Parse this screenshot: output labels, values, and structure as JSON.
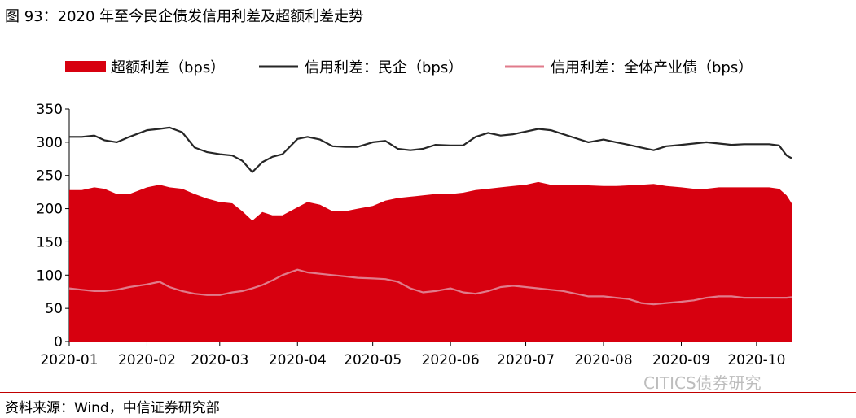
{
  "figure": {
    "title": "图 93：2020 年至今民企债发信用利差及超额利差走势",
    "source": "资料来源：Wind，中信证券研究部",
    "watermark": "CITICS债券研究"
  },
  "chart_data": {
    "type": "area",
    "x_tick_labels": [
      "2020-01",
      "2020-02",
      "2020-03",
      "2020-04",
      "2020-05",
      "2020-06",
      "2020-07",
      "2020-08",
      "2020-09",
      "2020-10"
    ],
    "y_tick_labels": [
      "0",
      "50",
      "100",
      "150",
      "200",
      "250",
      "300",
      "350"
    ],
    "ylim": [
      0,
      350
    ],
    "legend_position": "top",
    "x": [
      "2020-01-01",
      "2020-01-06",
      "2020-01-11",
      "2020-01-15",
      "2020-01-20",
      "2020-01-25",
      "2020-02-01",
      "2020-02-06",
      "2020-02-10",
      "2020-02-15",
      "2020-02-20",
      "2020-02-25",
      "2020-03-01",
      "2020-03-06",
      "2020-03-10",
      "2020-03-14",
      "2020-03-18",
      "2020-03-22",
      "2020-03-26",
      "2020-04-01",
      "2020-04-05",
      "2020-04-10",
      "2020-04-15",
      "2020-04-20",
      "2020-04-25",
      "2020-05-01",
      "2020-05-06",
      "2020-05-11",
      "2020-05-16",
      "2020-05-21",
      "2020-05-26",
      "2020-06-01",
      "2020-06-06",
      "2020-06-11",
      "2020-06-16",
      "2020-06-21",
      "2020-06-26",
      "2020-07-01",
      "2020-07-06",
      "2020-07-11",
      "2020-07-16",
      "2020-07-21",
      "2020-07-26",
      "2020-08-01",
      "2020-08-06",
      "2020-08-11",
      "2020-08-16",
      "2020-08-21",
      "2020-08-26",
      "2020-09-01",
      "2020-09-06",
      "2020-09-11",
      "2020-09-16",
      "2020-09-21",
      "2020-09-26",
      "2020-10-01",
      "2020-10-06",
      "2020-10-10",
      "2020-10-13",
      "2020-10-15"
    ],
    "series": [
      {
        "name": "超额利差（bps）",
        "style": "area",
        "color": "#d7000f",
        "values": [
          228,
          228,
          232,
          230,
          222,
          222,
          232,
          236,
          232,
          230,
          222,
          215,
          210,
          208,
          196,
          182,
          195,
          190,
          190,
          202,
          210,
          206,
          196,
          196,
          200,
          204,
          212,
          216,
          218,
          220,
          222,
          222,
          224,
          228,
          230,
          232,
          234,
          236,
          240,
          236,
          236,
          235,
          235,
          234,
          234,
          235,
          236,
          237,
          234,
          232,
          230,
          230,
          232,
          232,
          232,
          232,
          232,
          230,
          220,
          208
        ]
      },
      {
        "name": "信用利差：民企（bps）",
        "style": "line",
        "color": "#262626",
        "values": [
          308,
          308,
          310,
          303,
          300,
          308,
          318,
          320,
          322,
          315,
          292,
          285,
          282,
          280,
          272,
          255,
          270,
          278,
          282,
          305,
          308,
          304,
          294,
          293,
          293,
          300,
          302,
          290,
          288,
          290,
          296,
          295,
          295,
          308,
          314,
          310,
          312,
          316,
          320,
          318,
          312,
          306,
          300,
          304,
          300,
          296,
          292,
          288,
          294,
          296,
          298,
          300,
          298,
          296,
          297,
          297,
          297,
          295,
          280,
          276
        ]
      },
      {
        "name": "信用利差：全体产业债（bps）",
        "style": "line",
        "color": "#e07b8b",
        "values": [
          80,
          78,
          76,
          76,
          78,
          82,
          86,
          90,
          82,
          76,
          72,
          70,
          70,
          74,
          76,
          80,
          85,
          92,
          100,
          108,
          104,
          102,
          100,
          98,
          96,
          95,
          94,
          90,
          80,
          74,
          76,
          80,
          74,
          72,
          76,
          82,
          84,
          82,
          80,
          78,
          76,
          72,
          68,
          68,
          66,
          64,
          58,
          56,
          58,
          60,
          62,
          66,
          68,
          68,
          66,
          66,
          66,
          66,
          66,
          67
        ]
      }
    ]
  }
}
